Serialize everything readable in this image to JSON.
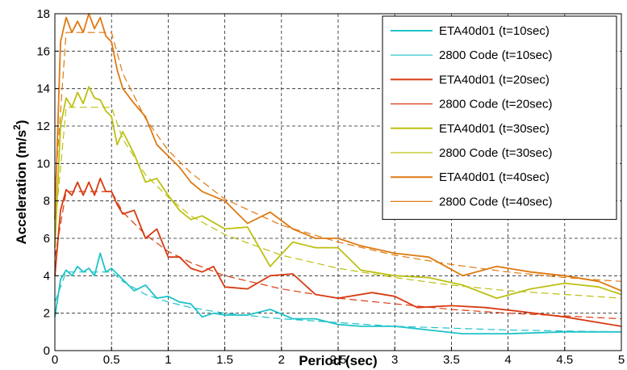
{
  "chart_data": {
    "type": "line",
    "xlabel": "Period (sec)",
    "ylabel_main": "Acceleration (m/s",
    "ylabel_sup": "2",
    "ylabel_close": ")",
    "xlim": [
      0,
      5
    ],
    "ylim": [
      0,
      18
    ],
    "x_ticks": [
      "0",
      "0.5",
      "1",
      "1.5",
      "2",
      "2.5",
      "3",
      "3.5",
      "4",
      "4.5",
      "5"
    ],
    "y_ticks": [
      "0",
      "2",
      "4",
      "6",
      "8",
      "10",
      "12",
      "14",
      "16",
      "18"
    ],
    "grid": true,
    "legend_position": "top-right",
    "series": [
      {
        "name": "ETA40d01 (t=10sec)",
        "color": "#1ec3c8",
        "style": "solid",
        "x": [
          0,
          0.05,
          0.1,
          0.15,
          0.2,
          0.25,
          0.3,
          0.35,
          0.4,
          0.45,
          0.5,
          0.6,
          0.7,
          0.8,
          0.9,
          1.0,
          1.1,
          1.2,
          1.3,
          1.4,
          1.5,
          1.7,
          1.9,
          2.1,
          2.3,
          2.5,
          2.7,
          3.0,
          3.3,
          3.6,
          4.0,
          4.5,
          5.0
        ],
        "y": [
          1.8,
          3.8,
          4.3,
          4.0,
          4.5,
          4.2,
          4.4,
          4.0,
          5.2,
          4.2,
          4.4,
          3.8,
          3.2,
          3.5,
          2.8,
          2.9,
          2.6,
          2.5,
          1.8,
          2.0,
          1.9,
          1.9,
          2.2,
          1.7,
          1.7,
          1.4,
          1.3,
          1.3,
          1.1,
          0.9,
          0.9,
          1.0,
          1.0
        ]
      },
      {
        "name": "2800 Code (t=10sec)",
        "color": "#1ec3c8",
        "style": "dashed",
        "x": [
          0,
          0.1,
          0.5,
          0.6,
          0.8,
          1.0,
          1.2,
          1.5,
          2.0,
          2.5,
          3.0,
          3.5,
          4.0,
          4.5,
          5.0
        ],
        "y": [
          2.6,
          4.2,
          4.2,
          3.7,
          3.0,
          2.6,
          2.3,
          2.0,
          1.7,
          1.5,
          1.3,
          1.2,
          1.1,
          1.05,
          1.0
        ]
      },
      {
        "name": "ETA40d01 (t=20sec)",
        "color": "#d83a10",
        "style": "solid",
        "x": [
          0,
          0.05,
          0.1,
          0.15,
          0.2,
          0.25,
          0.3,
          0.35,
          0.4,
          0.45,
          0.5,
          0.55,
          0.6,
          0.7,
          0.8,
          0.9,
          1.0,
          1.1,
          1.2,
          1.3,
          1.4,
          1.5,
          1.7,
          1.9,
          2.1,
          2.3,
          2.5,
          2.8,
          3.0,
          3.2,
          3.5,
          3.8,
          4.1,
          4.5,
          5.0
        ],
        "y": [
          4.0,
          7.5,
          8.6,
          8.3,
          9.0,
          8.3,
          9.0,
          8.3,
          9.2,
          8.5,
          8.5,
          7.8,
          7.3,
          7.5,
          6.0,
          6.5,
          5.0,
          5.0,
          4.4,
          4.2,
          4.5,
          3.4,
          3.3,
          4.0,
          4.1,
          3.0,
          2.8,
          3.1,
          2.9,
          2.3,
          2.4,
          2.3,
          2.1,
          1.8,
          1.3
        ]
      },
      {
        "name": "2800 Code (t=20sec)",
        "color": "#d83a10",
        "style": "dashed",
        "x": [
          0,
          0.1,
          0.5,
          0.6,
          0.8,
          1.0,
          1.2,
          1.5,
          2.0,
          2.5,
          3.0,
          3.5,
          4.0,
          4.5,
          5.0
        ],
        "y": [
          5.0,
          8.5,
          8.5,
          7.4,
          6.2,
          5.3,
          4.7,
          4.0,
          3.3,
          2.8,
          2.5,
          2.2,
          2.0,
          1.85,
          1.7
        ]
      },
      {
        "name": "ETA40d01 (t=30sec)",
        "color": "#bcc012",
        "style": "solid",
        "x": [
          0,
          0.05,
          0.1,
          0.15,
          0.2,
          0.25,
          0.3,
          0.35,
          0.4,
          0.45,
          0.5,
          0.55,
          0.6,
          0.7,
          0.8,
          0.9,
          1.0,
          1.1,
          1.2,
          1.3,
          1.5,
          1.7,
          1.9,
          2.1,
          2.3,
          2.5,
          2.7,
          3.0,
          3.3,
          3.6,
          3.9,
          4.2,
          4.5,
          4.8,
          5.0
        ],
        "y": [
          5.5,
          12.0,
          13.5,
          13.0,
          13.8,
          13.2,
          14.1,
          13.5,
          13.4,
          12.8,
          12.5,
          11.0,
          11.7,
          10.5,
          9.0,
          9.2,
          8.3,
          7.5,
          7.0,
          7.2,
          6.5,
          6.6,
          4.5,
          5.8,
          5.5,
          5.5,
          4.3,
          4.0,
          3.9,
          3.5,
          2.8,
          3.3,
          3.6,
          3.4,
          3.0
        ]
      },
      {
        "name": "2800 Code (t=30sec)",
        "color": "#bcc012",
        "style": "dashed",
        "x": [
          0,
          0.1,
          0.5,
          0.6,
          0.8,
          1.0,
          1.2,
          1.5,
          2.0,
          2.5,
          3.0,
          3.5,
          4.0,
          4.5,
          5.0
        ],
        "y": [
          6.5,
          13.0,
          13.0,
          11.3,
          9.4,
          8.2,
          7.2,
          6.2,
          5.1,
          4.4,
          3.9,
          3.5,
          3.2,
          3.0,
          2.8
        ]
      },
      {
        "name": "ETA40d01 (t=40sec)",
        "color": "#de7a12",
        "style": "solid",
        "x": [
          0,
          0.05,
          0.1,
          0.15,
          0.2,
          0.25,
          0.3,
          0.35,
          0.4,
          0.45,
          0.5,
          0.55,
          0.6,
          0.7,
          0.8,
          0.9,
          1.0,
          1.1,
          1.2,
          1.3,
          1.5,
          1.7,
          1.9,
          2.1,
          2.3,
          2.5,
          2.7,
          3.0,
          3.3,
          3.6,
          3.9,
          4.2,
          4.5,
          4.8,
          5.0
        ],
        "y": [
          7.0,
          16.5,
          17.8,
          17.0,
          17.6,
          17.0,
          18.0,
          17.2,
          17.8,
          16.8,
          16.5,
          15.0,
          14.0,
          13.2,
          12.5,
          11.0,
          10.4,
          9.8,
          9.0,
          8.5,
          8.0,
          6.8,
          7.4,
          6.5,
          6.0,
          6.0,
          5.6,
          5.2,
          5.0,
          4.0,
          4.5,
          4.2,
          4.0,
          3.7,
          3.2
        ]
      },
      {
        "name": "2800 Code (t=40sec)",
        "color": "#de7a12",
        "style": "dashed",
        "x": [
          0,
          0.1,
          0.5,
          0.6,
          0.8,
          1.0,
          1.2,
          1.5,
          2.0,
          2.5,
          3.0,
          3.5,
          4.0,
          4.5,
          5.0
        ],
        "y": [
          8.5,
          17.0,
          17.0,
          14.8,
          12.4,
          10.7,
          9.5,
          8.1,
          6.7,
          5.8,
          5.1,
          4.6,
          4.2,
          3.9,
          3.7
        ]
      }
    ]
  }
}
